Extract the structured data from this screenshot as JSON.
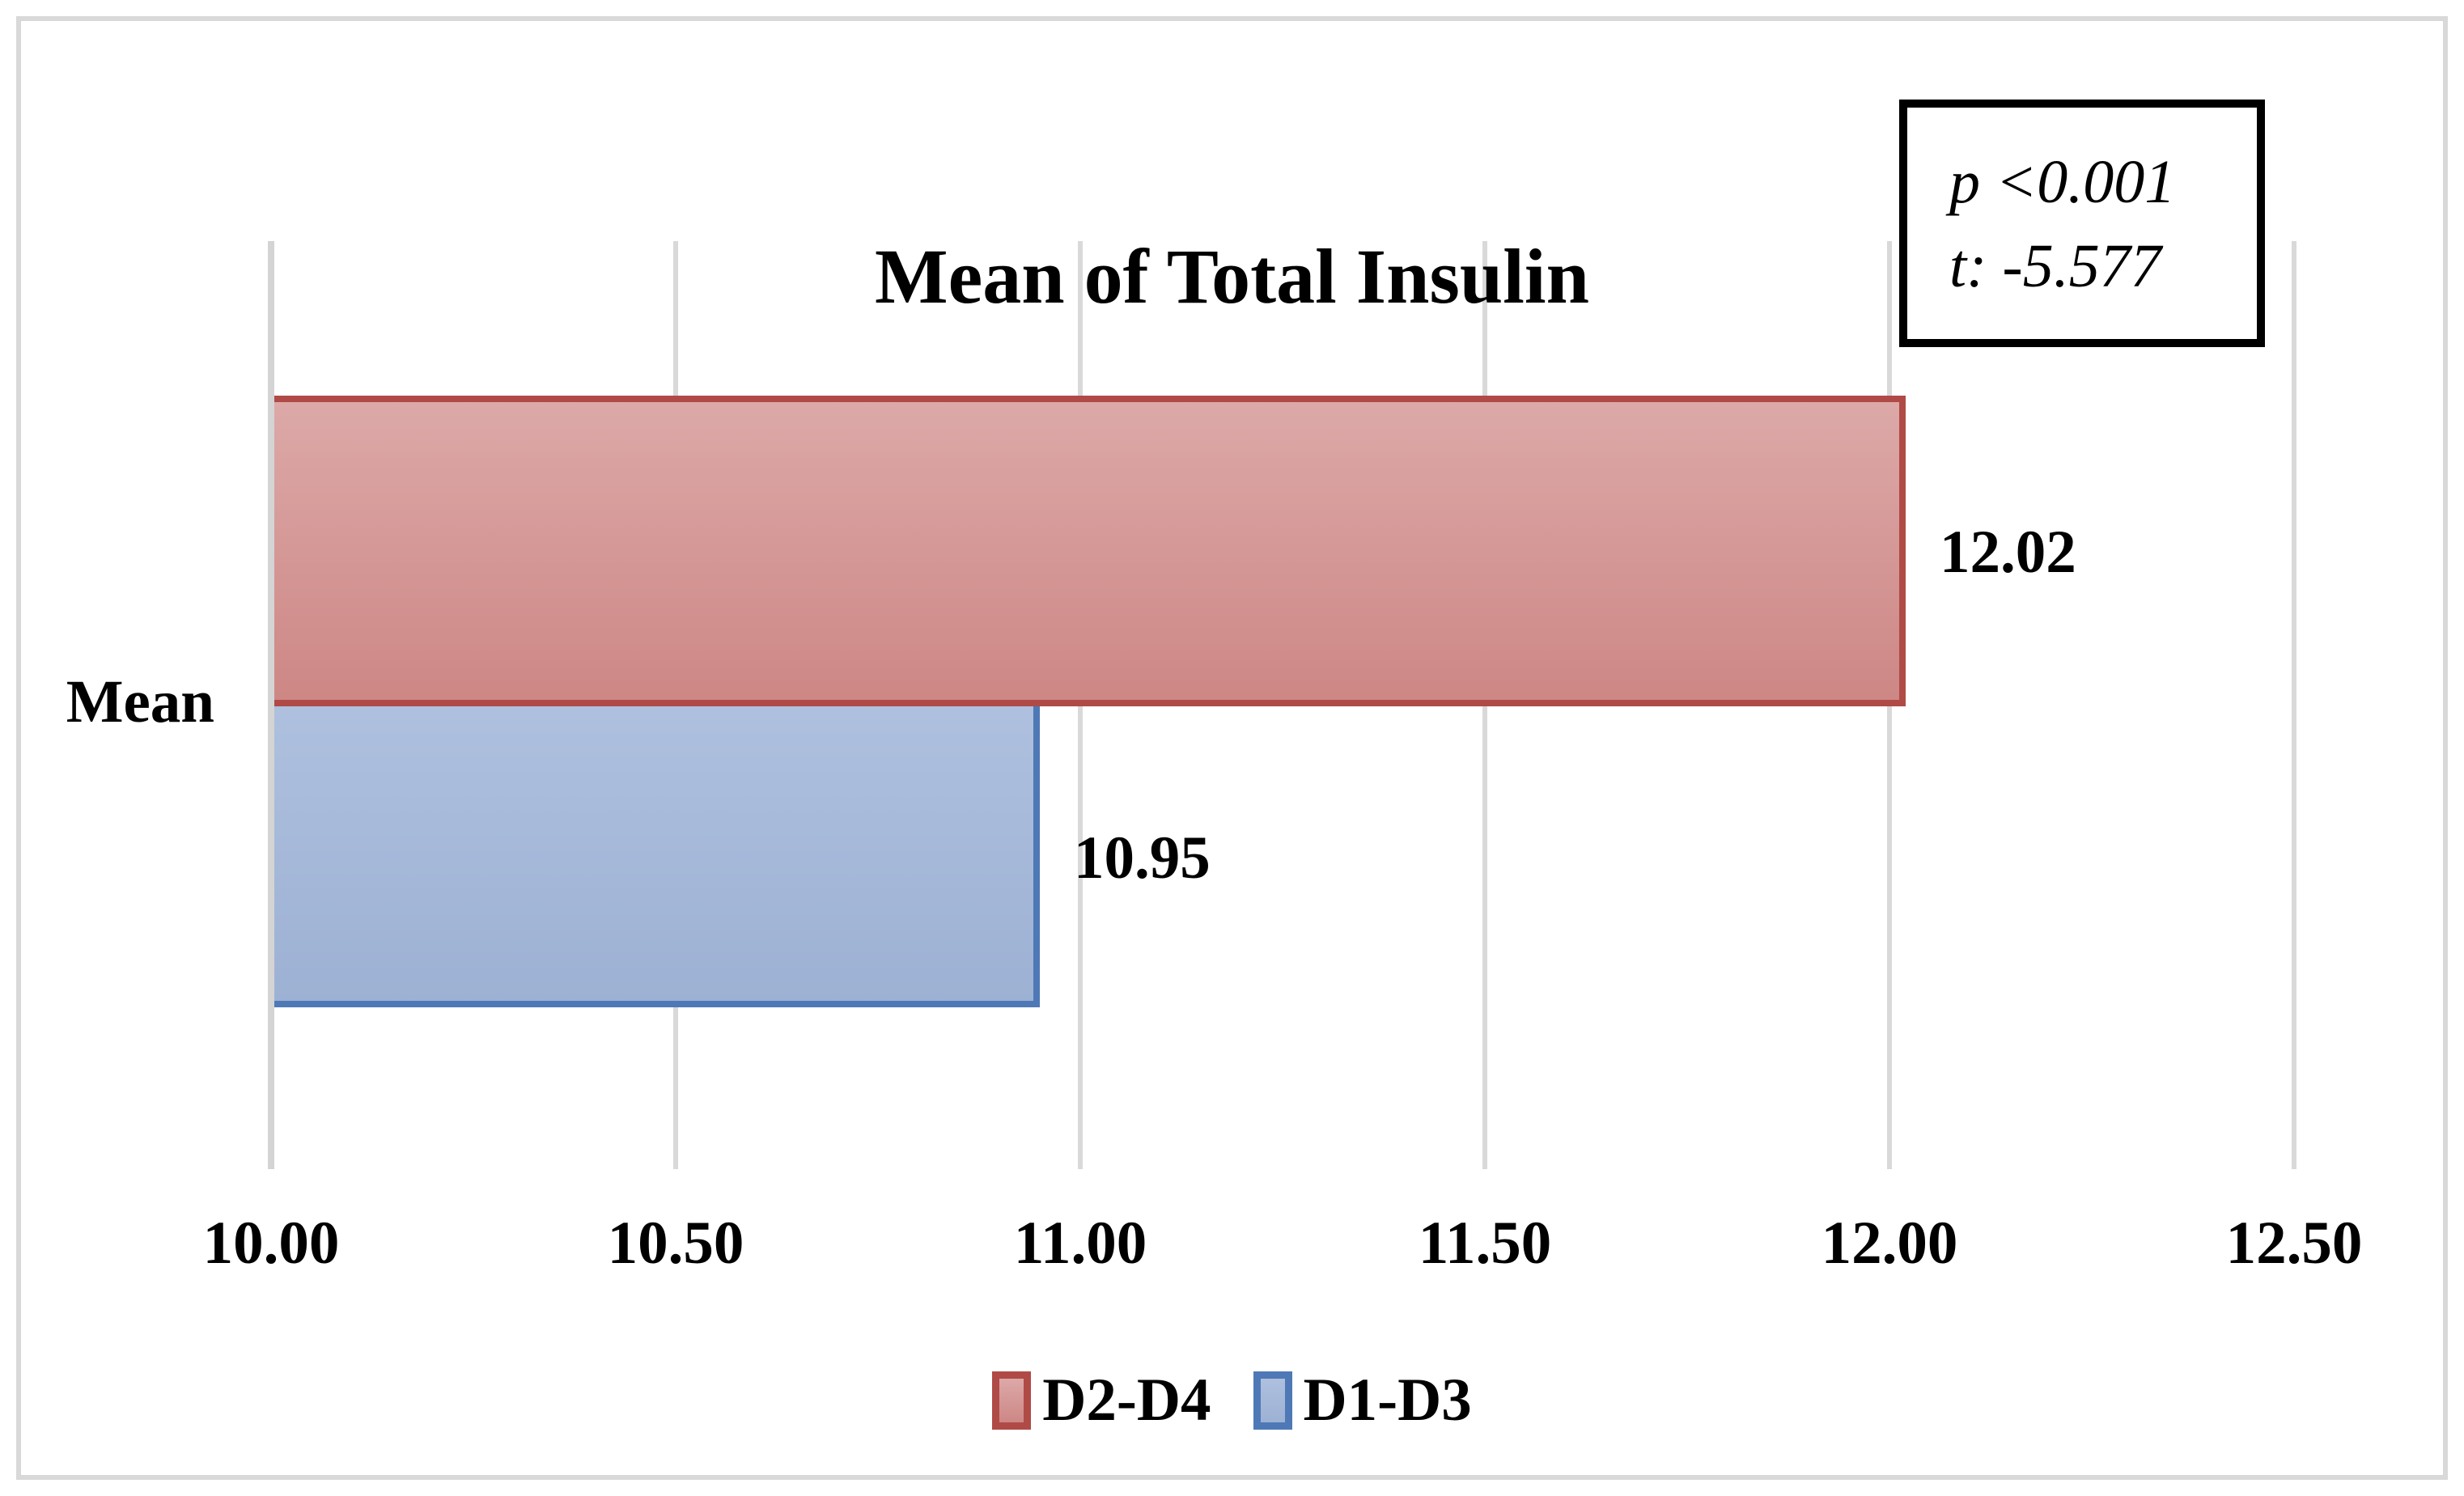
{
  "window": {
    "background": "#ffffff",
    "frame_border_color": "#d9d9d9"
  },
  "chart_data": {
    "type": "bar",
    "orientation": "horizontal",
    "title": "Mean of Total Insulin",
    "categories": [
      "Mean"
    ],
    "series": [
      {
        "name": "D2-D4",
        "values": [
          12.02
        ],
        "label": "12.02",
        "fill_top": "#dca9a8",
        "fill_bottom": "#cd8785",
        "border_color": "#b04a47"
      },
      {
        "name": "D1-D3",
        "values": [
          10.95
        ],
        "label": "10.95",
        "fill_top": "#aec0de",
        "fill_bottom": "#9db1d4",
        "border_color": "#4e79b6"
      }
    ],
    "xlim": [
      10.0,
      12.5
    ],
    "x_ticks": [
      {
        "value": 10.0,
        "label": "10.00"
      },
      {
        "value": 10.5,
        "label": "10.50"
      },
      {
        "value": 11.0,
        "label": "11.00"
      },
      {
        "value": 11.5,
        "label": "11.50"
      },
      {
        "value": 12.0,
        "label": "12.00"
      },
      {
        "value": 12.5,
        "label": "12.50"
      }
    ],
    "gridlines": true,
    "gridline_color": "#d9d9d9",
    "legend_position": "bottom",
    "annotation": {
      "line1": "p <0.001",
      "line2": "t: -5.577"
    }
  }
}
